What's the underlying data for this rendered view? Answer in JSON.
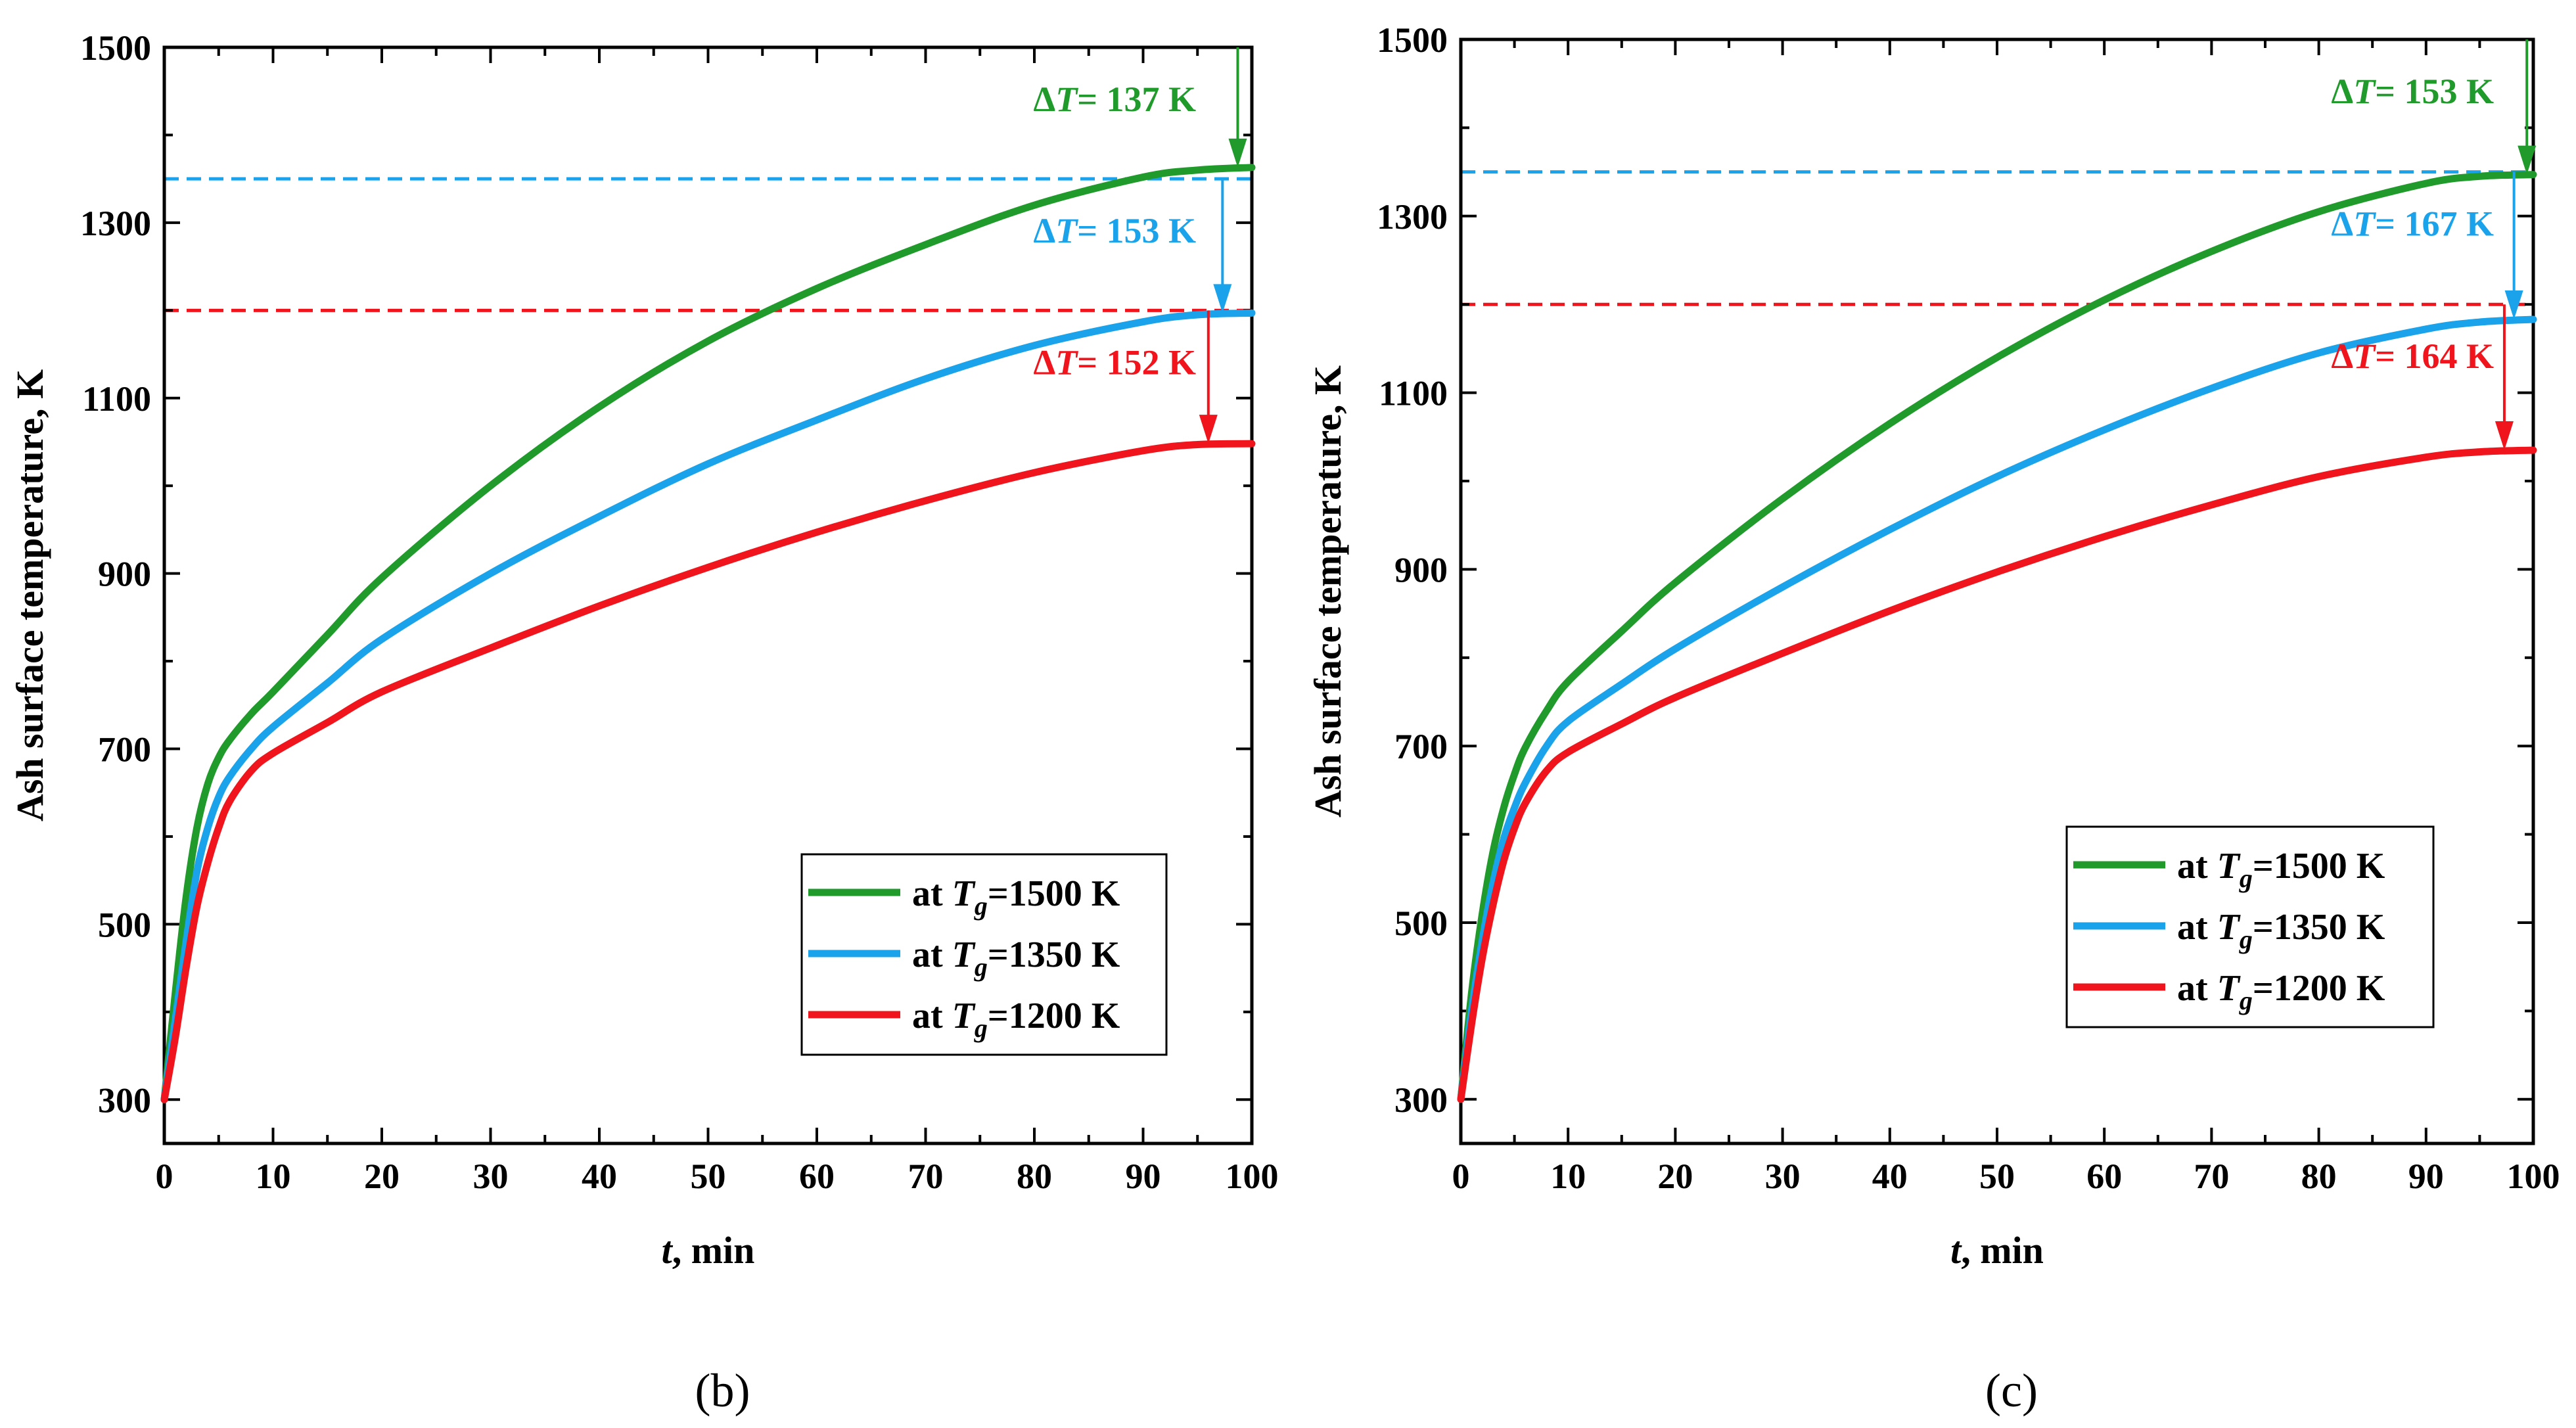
{
  "colors": {
    "green": "#1f9a2b",
    "blue": "#1aa2ea",
    "red": "#f0141c",
    "axis": "#000000"
  },
  "chart_data": [
    {
      "type": "line",
      "panel_label": "(b)",
      "xlabel_var": "t",
      "xlabel_unit": ", min",
      "ylabel": "Ash surface temperature, K",
      "xlim": [
        0,
        100
      ],
      "ylim": [
        250,
        1500
      ],
      "xticks": [
        0,
        10,
        20,
        30,
        40,
        50,
        60,
        70,
        80,
        90,
        100
      ],
      "yticks": [
        300,
        500,
        700,
        900,
        1100,
        1300,
        1500
      ],
      "reference_lines": [
        {
          "name": "T_g 1500 K",
          "y": 1500,
          "color": "green"
        },
        {
          "name": "T_g 1350 K",
          "y": 1350,
          "color": "blue"
        },
        {
          "name": "T_g 1200 K",
          "y": 1200,
          "color": "red"
        }
      ],
      "series": [
        {
          "name": "at T_g=1500 K",
          "color": "green",
          "x": [
            0,
            1,
            2,
            3,
            4,
            5,
            6,
            8,
            10,
            15,
            20,
            30,
            40,
            50,
            60,
            70,
            80,
            90,
            95,
            100
          ],
          "y": [
            300,
            420,
            530,
            610,
            660,
            690,
            710,
            740,
            765,
            830,
            895,
            1000,
            1090,
            1165,
            1225,
            1275,
            1320,
            1352,
            1360,
            1363
          ]
        },
        {
          "name": "at T_g=1350 K",
          "color": "blue",
          "x": [
            0,
            1,
            2,
            3,
            4,
            5,
            6,
            8,
            10,
            15,
            20,
            30,
            40,
            50,
            60,
            70,
            80,
            90,
            95,
            100
          ],
          "y": [
            300,
            390,
            480,
            560,
            610,
            645,
            668,
            700,
            725,
            775,
            825,
            900,
            965,
            1025,
            1075,
            1122,
            1160,
            1187,
            1195,
            1197
          ]
        },
        {
          "name": "at T_g=1200 K",
          "color": "red",
          "x": [
            0,
            1,
            2,
            3,
            4,
            5,
            6,
            8,
            10,
            15,
            20,
            30,
            40,
            50,
            60,
            70,
            80,
            90,
            95,
            100
          ],
          "y": [
            300,
            370,
            450,
            520,
            570,
            610,
            640,
            675,
            695,
            730,
            765,
            815,
            863,
            907,
            947,
            983,
            1015,
            1040,
            1047,
            1048
          ]
        }
      ],
      "legend": [
        {
          "prefix": "at ",
          "var": "T",
          "sub": "g",
          "suffix": "=1500 K",
          "color": "green"
        },
        {
          "prefix": "at ",
          "var": "T",
          "sub": "g",
          "suffix": "=1350 K",
          "color": "blue"
        },
        {
          "prefix": "at ",
          "var": "T",
          "sub": "g",
          "suffix": "=1200 K",
          "color": "red"
        }
      ],
      "annotations": [
        {
          "prefix": "Δ",
          "var": "T",
          "value": "= 137 K",
          "color": "green",
          "arrow_x": 98.7,
          "arrow_from": 1500,
          "arrow_to": 1363
        },
        {
          "prefix": "Δ",
          "var": "T",
          "value": "= 153 K",
          "color": "blue",
          "arrow_x": 97.3,
          "arrow_from": 1350,
          "arrow_to": 1197
        },
        {
          "prefix": "Δ",
          "var": "T",
          "value": "= 152 K",
          "color": "red",
          "arrow_x": 96.0,
          "arrow_from": 1200,
          "arrow_to": 1048
        }
      ]
    },
    {
      "type": "line",
      "panel_label": "(c)",
      "xlabel_var": "t",
      "xlabel_unit": ", min",
      "ylabel": "Ash surface temperature, K",
      "xlim": [
        0,
        100
      ],
      "ylim": [
        250,
        1500
      ],
      "xticks": [
        0,
        10,
        20,
        30,
        40,
        50,
        60,
        70,
        80,
        90,
        100
      ],
      "yticks": [
        300,
        500,
        700,
        900,
        1100,
        1300,
        1500
      ],
      "reference_lines": [
        {
          "name": "T_g 1500 K",
          "y": 1500,
          "color": "green"
        },
        {
          "name": "T_g 1350 K",
          "y": 1350,
          "color": "blue"
        },
        {
          "name": "T_g 1200 K",
          "y": 1200,
          "color": "red"
        }
      ],
      "series": [
        {
          "name": "at T_g=1500 K",
          "color": "green",
          "x": [
            0,
            1,
            2,
            3,
            4,
            5,
            6,
            8,
            10,
            15,
            20,
            30,
            40,
            50,
            60,
            70,
            80,
            90,
            95,
            100
          ],
          "y": [
            300,
            420,
            510,
            580,
            630,
            668,
            698,
            740,
            773,
            830,
            885,
            980,
            1065,
            1140,
            1205,
            1260,
            1305,
            1337,
            1345,
            1347
          ]
        },
        {
          "name": "at T_g=1350 K",
          "color": "blue",
          "x": [
            0,
            1,
            2,
            3,
            4,
            5,
            6,
            8,
            10,
            15,
            20,
            30,
            40,
            50,
            60,
            70,
            80,
            90,
            95,
            100
          ],
          "y": [
            300,
            400,
            480,
            545,
            595,
            630,
            658,
            700,
            728,
            770,
            810,
            880,
            945,
            1005,
            1058,
            1105,
            1145,
            1172,
            1180,
            1183
          ]
        },
        {
          "name": "at T_g=1200 K",
          "color": "red",
          "x": [
            0,
            1,
            2,
            3,
            4,
            5,
            6,
            8,
            10,
            15,
            20,
            30,
            40,
            50,
            60,
            70,
            80,
            90,
            95,
            100
          ],
          "y": [
            300,
            385,
            460,
            520,
            570,
            607,
            635,
            672,
            693,
            725,
            755,
            805,
            853,
            897,
            937,
            973,
            1005,
            1027,
            1033,
            1035
          ]
        }
      ],
      "legend": [
        {
          "prefix": "at ",
          "var": "T",
          "sub": "g",
          "suffix": "=1500 K",
          "color": "green"
        },
        {
          "prefix": "at ",
          "var": "T",
          "sub": "g",
          "suffix": "=1350 K",
          "color": "blue"
        },
        {
          "prefix": "at ",
          "var": "T",
          "sub": "g",
          "suffix": "=1200 K",
          "color": "red"
        }
      ],
      "annotations": [
        {
          "prefix": "Δ",
          "var": "T",
          "value": "= 153 K",
          "color": "green",
          "arrow_x": 99.4,
          "arrow_from": 1500,
          "arrow_to": 1347
        },
        {
          "prefix": "Δ",
          "var": "T",
          "value": "= 167 K",
          "color": "blue",
          "arrow_x": 98.2,
          "arrow_from": 1350,
          "arrow_to": 1183
        },
        {
          "prefix": "Δ",
          "var": "T",
          "value": "= 164 K",
          "color": "red",
          "arrow_x": 97.3,
          "arrow_from": 1200,
          "arrow_to": 1035
        }
      ]
    }
  ]
}
